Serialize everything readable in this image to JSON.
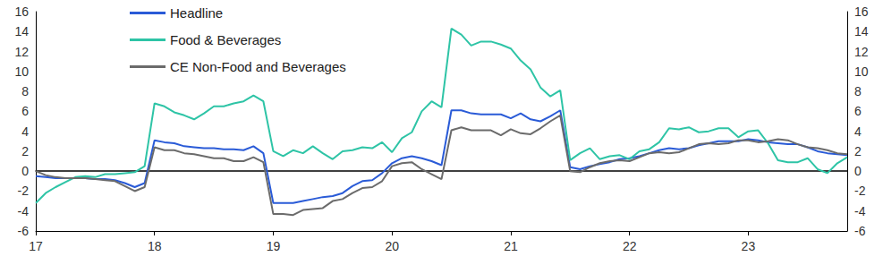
{
  "chart_data": {
    "type": "line",
    "categories": [
      "17",
      null,
      null,
      null,
      null,
      null,
      null,
      null,
      null,
      null,
      null,
      null,
      "18",
      null,
      null,
      null,
      null,
      null,
      null,
      null,
      null,
      null,
      null,
      null,
      "19",
      null,
      null,
      null,
      null,
      null,
      null,
      null,
      null,
      null,
      null,
      null,
      "20",
      null,
      null,
      null,
      null,
      null,
      null,
      null,
      null,
      null,
      null,
      null,
      "21",
      null,
      null,
      null,
      null,
      null,
      null,
      null,
      null,
      null,
      null,
      null,
      "22",
      null,
      null,
      null,
      null,
      null,
      null,
      null,
      null,
      null,
      null,
      null,
      "23",
      null,
      null,
      null,
      null,
      null,
      null,
      null,
      null,
      null,
      null
    ],
    "series": [
      {
        "name": "Headline",
        "color": "#2a5bd7",
        "values": [
          -0.5,
          -0.6,
          -0.7,
          -0.7,
          -0.7,
          -0.7,
          -0.8,
          -0.8,
          -0.9,
          -1.2,
          -1.6,
          -1.2,
          3.1,
          2.9,
          2.8,
          2.5,
          2.4,
          2.3,
          2.3,
          2.2,
          2.2,
          2.1,
          2.5,
          1.8,
          -3.2,
          -3.2,
          -3.2,
          -3.0,
          -2.8,
          -2.6,
          -2.5,
          -2.2,
          -1.5,
          -1.0,
          -0.9,
          -0.2,
          0.8,
          1.3,
          1.5,
          1.3,
          1.0,
          0.6,
          6.1,
          6.1,
          5.8,
          5.7,
          5.7,
          5.7,
          5.3,
          5.8,
          5.2,
          5.0,
          5.5,
          6.1,
          0.4,
          0.2,
          0.5,
          0.7,
          0.9,
          1.2,
          1.3,
          1.5,
          1.8,
          2.1,
          2.3,
          2.2,
          2.3,
          2.6,
          2.8,
          3.0,
          3.0,
          3.0,
          3.2,
          3.1,
          2.9,
          2.8,
          2.7,
          2.7,
          2.4,
          2.0,
          1.8,
          1.7,
          1.6
        ]
      },
      {
        "name": "Food & Beverages",
        "color": "#2ec4a6",
        "values": [
          -3.2,
          -2.2,
          -1.6,
          -1.1,
          -0.6,
          -0.5,
          -0.6,
          -0.3,
          -0.3,
          -0.2,
          -0.1,
          0.5,
          6.8,
          6.5,
          5.9,
          5.6,
          5.2,
          5.8,
          6.5,
          6.5,
          6.8,
          7.0,
          7.6,
          7.0,
          2.0,
          1.5,
          2.1,
          1.8,
          2.5,
          1.8,
          1.2,
          2.0,
          2.1,
          2.4,
          2.3,
          2.9,
          1.9,
          3.3,
          3.9,
          6.0,
          7.0,
          6.4,
          14.3,
          13.7,
          12.6,
          13.0,
          13.0,
          12.7,
          12.3,
          11.1,
          10.2,
          8.4,
          7.5,
          8.1,
          1.1,
          1.8,
          2.3,
          1.2,
          1.5,
          1.6,
          1.2,
          2.0,
          2.2,
          2.9,
          4.3,
          4.2,
          4.4,
          3.9,
          4.0,
          4.3,
          4.3,
          3.4,
          4.0,
          4.1,
          2.8,
          1.1,
          0.9,
          0.9,
          1.3,
          0.2,
          -0.2,
          0.8,
          1.4
        ]
      },
      {
        "name": "CE Non-Food and Beverages",
        "color": "#6b6b6b",
        "values": [
          0.0,
          -0.4,
          -0.6,
          -0.7,
          -0.7,
          -0.7,
          -0.8,
          -0.9,
          -1.0,
          -1.5,
          -2.0,
          -1.6,
          2.4,
          2.1,
          2.1,
          1.8,
          1.7,
          1.5,
          1.3,
          1.3,
          1.0,
          1.0,
          1.4,
          0.9,
          -4.3,
          -4.3,
          -4.4,
          -3.9,
          -3.8,
          -3.7,
          -3.0,
          -2.8,
          -2.2,
          -1.7,
          -1.6,
          -1.0,
          0.5,
          0.8,
          0.9,
          0.2,
          -0.3,
          -0.8,
          4.1,
          4.4,
          4.1,
          4.1,
          4.1,
          3.6,
          4.2,
          3.8,
          3.7,
          4.3,
          5.0,
          5.6,
          0.0,
          -0.1,
          0.4,
          0.8,
          1.0,
          1.1,
          1.0,
          1.4,
          1.8,
          1.9,
          1.8,
          1.9,
          2.3,
          2.7,
          2.8,
          2.7,
          2.8,
          3.1,
          3.1,
          2.9,
          3.0,
          3.2,
          3.1,
          2.7,
          2.4,
          2.3,
          2.1,
          1.8,
          1.7
        ]
      }
    ],
    "ylim": [
      -6,
      16
    ],
    "yticks": [
      -6,
      -4,
      -2,
      0,
      2,
      4,
      6,
      8,
      10,
      12,
      14,
      16
    ],
    "y2lim": [
      -6,
      16
    ],
    "y2ticks": [
      -6,
      -4,
      -2,
      0,
      2,
      4,
      6,
      8,
      10,
      12,
      14,
      16
    ],
    "legend": "upper left",
    "grid": false
  }
}
